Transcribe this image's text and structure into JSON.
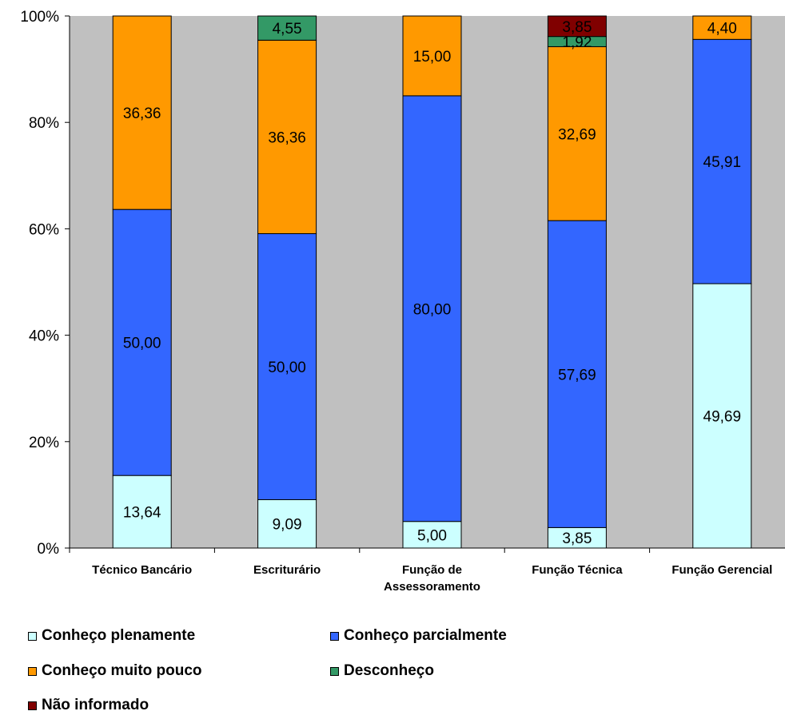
{
  "chart_data": {
    "type": "bar",
    "stacked": true,
    "percent_stacked": true,
    "categories": [
      [
        "Técnico Bancário"
      ],
      [
        "Escriturário"
      ],
      [
        "Função de",
        "Assessoramento"
      ],
      [
        "Função Técnica"
      ],
      [
        "Função Gerencial"
      ]
    ],
    "series": [
      {
        "name": "Conheço plenamente",
        "color": "#ccffff",
        "values": [
          13.64,
          9.09,
          5.0,
          3.85,
          49.69
        ],
        "labels": [
          "13,64",
          "9,09",
          "5,00",
          "3,85",
          "49,69"
        ]
      },
      {
        "name": "Conheço parcialmente",
        "color": "#3366ff",
        "values": [
          50.0,
          50.0,
          80.0,
          57.69,
          45.91
        ],
        "labels": [
          "50,00",
          "50,00",
          "80,00",
          "57,69",
          "45,91"
        ]
      },
      {
        "name": "Conheço muito pouco",
        "color": "#ff9900",
        "values": [
          36.36,
          36.36,
          15.0,
          32.69,
          4.4
        ],
        "labels": [
          "36,36",
          "36,36",
          "15,00",
          "32,69",
          "4,40"
        ]
      },
      {
        "name": "Desconheço",
        "color": "#339966",
        "values": [
          0,
          4.55,
          0,
          1.92,
          0
        ],
        "labels": [
          "",
          "4,55",
          "",
          "1,92",
          ""
        ]
      },
      {
        "name": "Não informado",
        "color": "#800000",
        "values": [
          0,
          0,
          0,
          3.85,
          0
        ],
        "labels": [
          "",
          "",
          "",
          "3,85",
          ""
        ]
      }
    ],
    "yticks": [
      "0%",
      "20%",
      "40%",
      "60%",
      "80%",
      "100%"
    ],
    "ylim": [
      0,
      100
    ],
    "plot_background": "#c0c0c0",
    "legend_position": "bottom"
  }
}
